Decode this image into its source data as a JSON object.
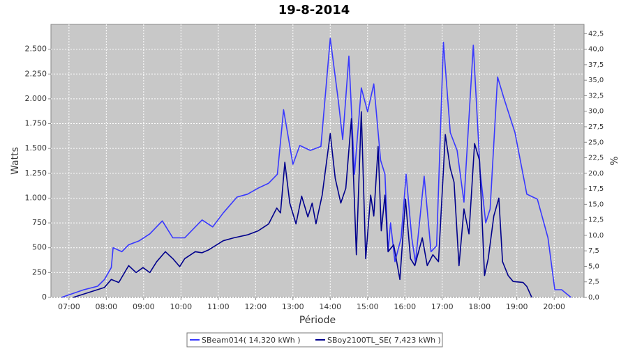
{
  "chart_data": {
    "type": "line",
    "title": "19-8-2014",
    "x_label": "Période",
    "y_label": "Watts",
    "y2_label": "%",
    "xlim": [
      "06:31",
      "20:48"
    ],
    "xticks": [
      "07:00",
      "08:00",
      "09:00",
      "10:00",
      "11:00",
      "12:00",
      "13:00",
      "14:00",
      "15:00",
      "16:00",
      "17:00",
      "18:00",
      "19:00",
      "20:00"
    ],
    "ylim": [
      0,
      2750
    ],
    "yticks": [
      0,
      250,
      500,
      750,
      {
        "value": 1000,
        "label": "1.000"
      },
      {
        "value": 1250,
        "label": "1.250"
      },
      {
        "value": 1500,
        "label": "1.500"
      },
      {
        "value": 1750,
        "label": "1.750"
      },
      {
        "value": 2000,
        "label": "2.000"
      },
      {
        "value": 2250,
        "label": "2.250"
      },
      {
        "value": 2500,
        "label": "2.500"
      }
    ],
    "y2lim": [
      0,
      44
    ],
    "y2ticks": [
      {
        "value": 0,
        "label": "0,0"
      },
      {
        "value": 2.5,
        "label": "2,5"
      },
      {
        "value": 5,
        "label": "5,0"
      },
      {
        "value": 7.5,
        "label": "7,5"
      },
      {
        "value": 10,
        "label": "10,0"
      },
      {
        "value": 12.5,
        "label": "12,5"
      },
      {
        "value": 15,
        "label": "15,0"
      },
      {
        "value": 17.5,
        "label": "17,5"
      },
      {
        "value": 20,
        "label": "20,0"
      },
      {
        "value": 22.5,
        "label": "22,5"
      },
      {
        "value": 25,
        "label": "25,0"
      },
      {
        "value": 27.5,
        "label": "27,5"
      },
      {
        "value": 30,
        "label": "30,0"
      },
      {
        "value": 32.5,
        "label": "32,5"
      },
      {
        "value": 35,
        "label": "35,0"
      },
      {
        "value": 37.5,
        "label": "37,5"
      },
      {
        "value": 40,
        "label": "40,0"
      },
      {
        "value": 42.5,
        "label": "42,5"
      }
    ],
    "grid": true,
    "legend": "bottom",
    "series": [
      {
        "name": "SBeam014( 14,320 kWh )",
        "color": "#3838ff",
        "x": [
          "06:48",
          "07:24",
          "07:46",
          "07:57",
          "08:08",
          "08:11",
          "08:25",
          "08:36",
          "08:53",
          "09:10",
          "09:30",
          "09:47",
          "10:06",
          "10:34",
          "10:51",
          "11:08",
          "11:30",
          "11:47",
          "12:04",
          "12:21",
          "12:35",
          "12:45",
          "13:00",
          "13:11",
          "13:28",
          "13:45",
          "14:00",
          "14:13",
          "14:20",
          "14:30",
          "14:39",
          "14:50",
          "15:00",
          "15:10",
          "15:21",
          "15:28",
          "15:33",
          "15:37",
          "15:44",
          "15:54",
          "16:02",
          "16:11",
          "16:17",
          "16:31",
          "16:42",
          "16:51",
          "17:02",
          "17:13",
          "17:24",
          "17:35",
          "17:50",
          "18:01",
          "18:10",
          "18:17",
          "18:29",
          "18:39",
          "18:57",
          "19:16",
          "19:33",
          "19:50",
          "20:01",
          "20:12",
          "20:27"
        ],
        "values": [
          0,
          77,
          112,
          180,
          300,
          500,
          460,
          530,
          570,
          640,
          770,
          600,
          600,
          780,
          710,
          850,
          1010,
          1040,
          1100,
          1150,
          1240,
          1890,
          1340,
          1530,
          1480,
          1520,
          2610,
          1980,
          1590,
          2430,
          1240,
          2110,
          1870,
          2150,
          1380,
          1240,
          460,
          750,
          360,
          600,
          1240,
          600,
          350,
          1220,
          460,
          520,
          2570,
          1660,
          1480,
          960,
          2540,
          1270,
          750,
          890,
          2220,
          2010,
          1660,
          1040,
          990,
          600,
          77,
          77,
          0
        ]
      },
      {
        "name": "SBoy2100TL_SE( 7,423 kWh )",
        "color": "#00008c",
        "x": [
          "07:07",
          "07:35",
          "07:57",
          "08:08",
          "08:20",
          "08:36",
          "08:48",
          "08:59",
          "09:10",
          "09:21",
          "09:35",
          "09:47",
          "09:58",
          "10:06",
          "10:23",
          "10:34",
          "10:45",
          "11:08",
          "11:25",
          "11:47",
          "12:04",
          "12:21",
          "12:34",
          "12:40",
          "12:47",
          "12:55",
          "13:05",
          "13:14",
          "13:24",
          "13:31",
          "13:37",
          "13:47",
          "14:00",
          "14:08",
          "14:17",
          "14:25",
          "14:34",
          "14:42",
          "14:50",
          "14:57",
          "15:05",
          "15:10",
          "15:17",
          "15:22",
          "15:28",
          "15:33",
          "15:42",
          "15:52",
          "16:01",
          "16:09",
          "16:16",
          "16:28",
          "16:36",
          "16:45",
          "16:54",
          "17:05",
          "17:13",
          "17:19",
          "17:27",
          "17:35",
          "17:43",
          "17:52",
          "18:00",
          "18:08",
          "18:14",
          "18:23",
          "18:31",
          "18:37",
          "18:46",
          "18:54",
          "19:10",
          "19:16",
          "19:24"
        ],
        "values": [
          0,
          56,
          100,
          180,
          150,
          320,
          250,
          300,
          250,
          360,
          460,
          390,
          310,
          390,
          460,
          450,
          480,
          570,
          600,
          630,
          670,
          740,
          900,
          850,
          1360,
          950,
          740,
          1020,
          810,
          950,
          740,
          1030,
          1650,
          1200,
          950,
          1100,
          1800,
          430,
          1870,
          390,
          1030,
          820,
          1520,
          670,
          1030,
          460,
          530,
          180,
          990,
          390,
          320,
          600,
          320,
          430,
          360,
          1640,
          1300,
          1160,
          320,
          890,
          640,
          1550,
          1380,
          220,
          390,
          820,
          1000,
          360,
          220,
          160,
          150,
          110,
          0
        ]
      }
    ]
  }
}
